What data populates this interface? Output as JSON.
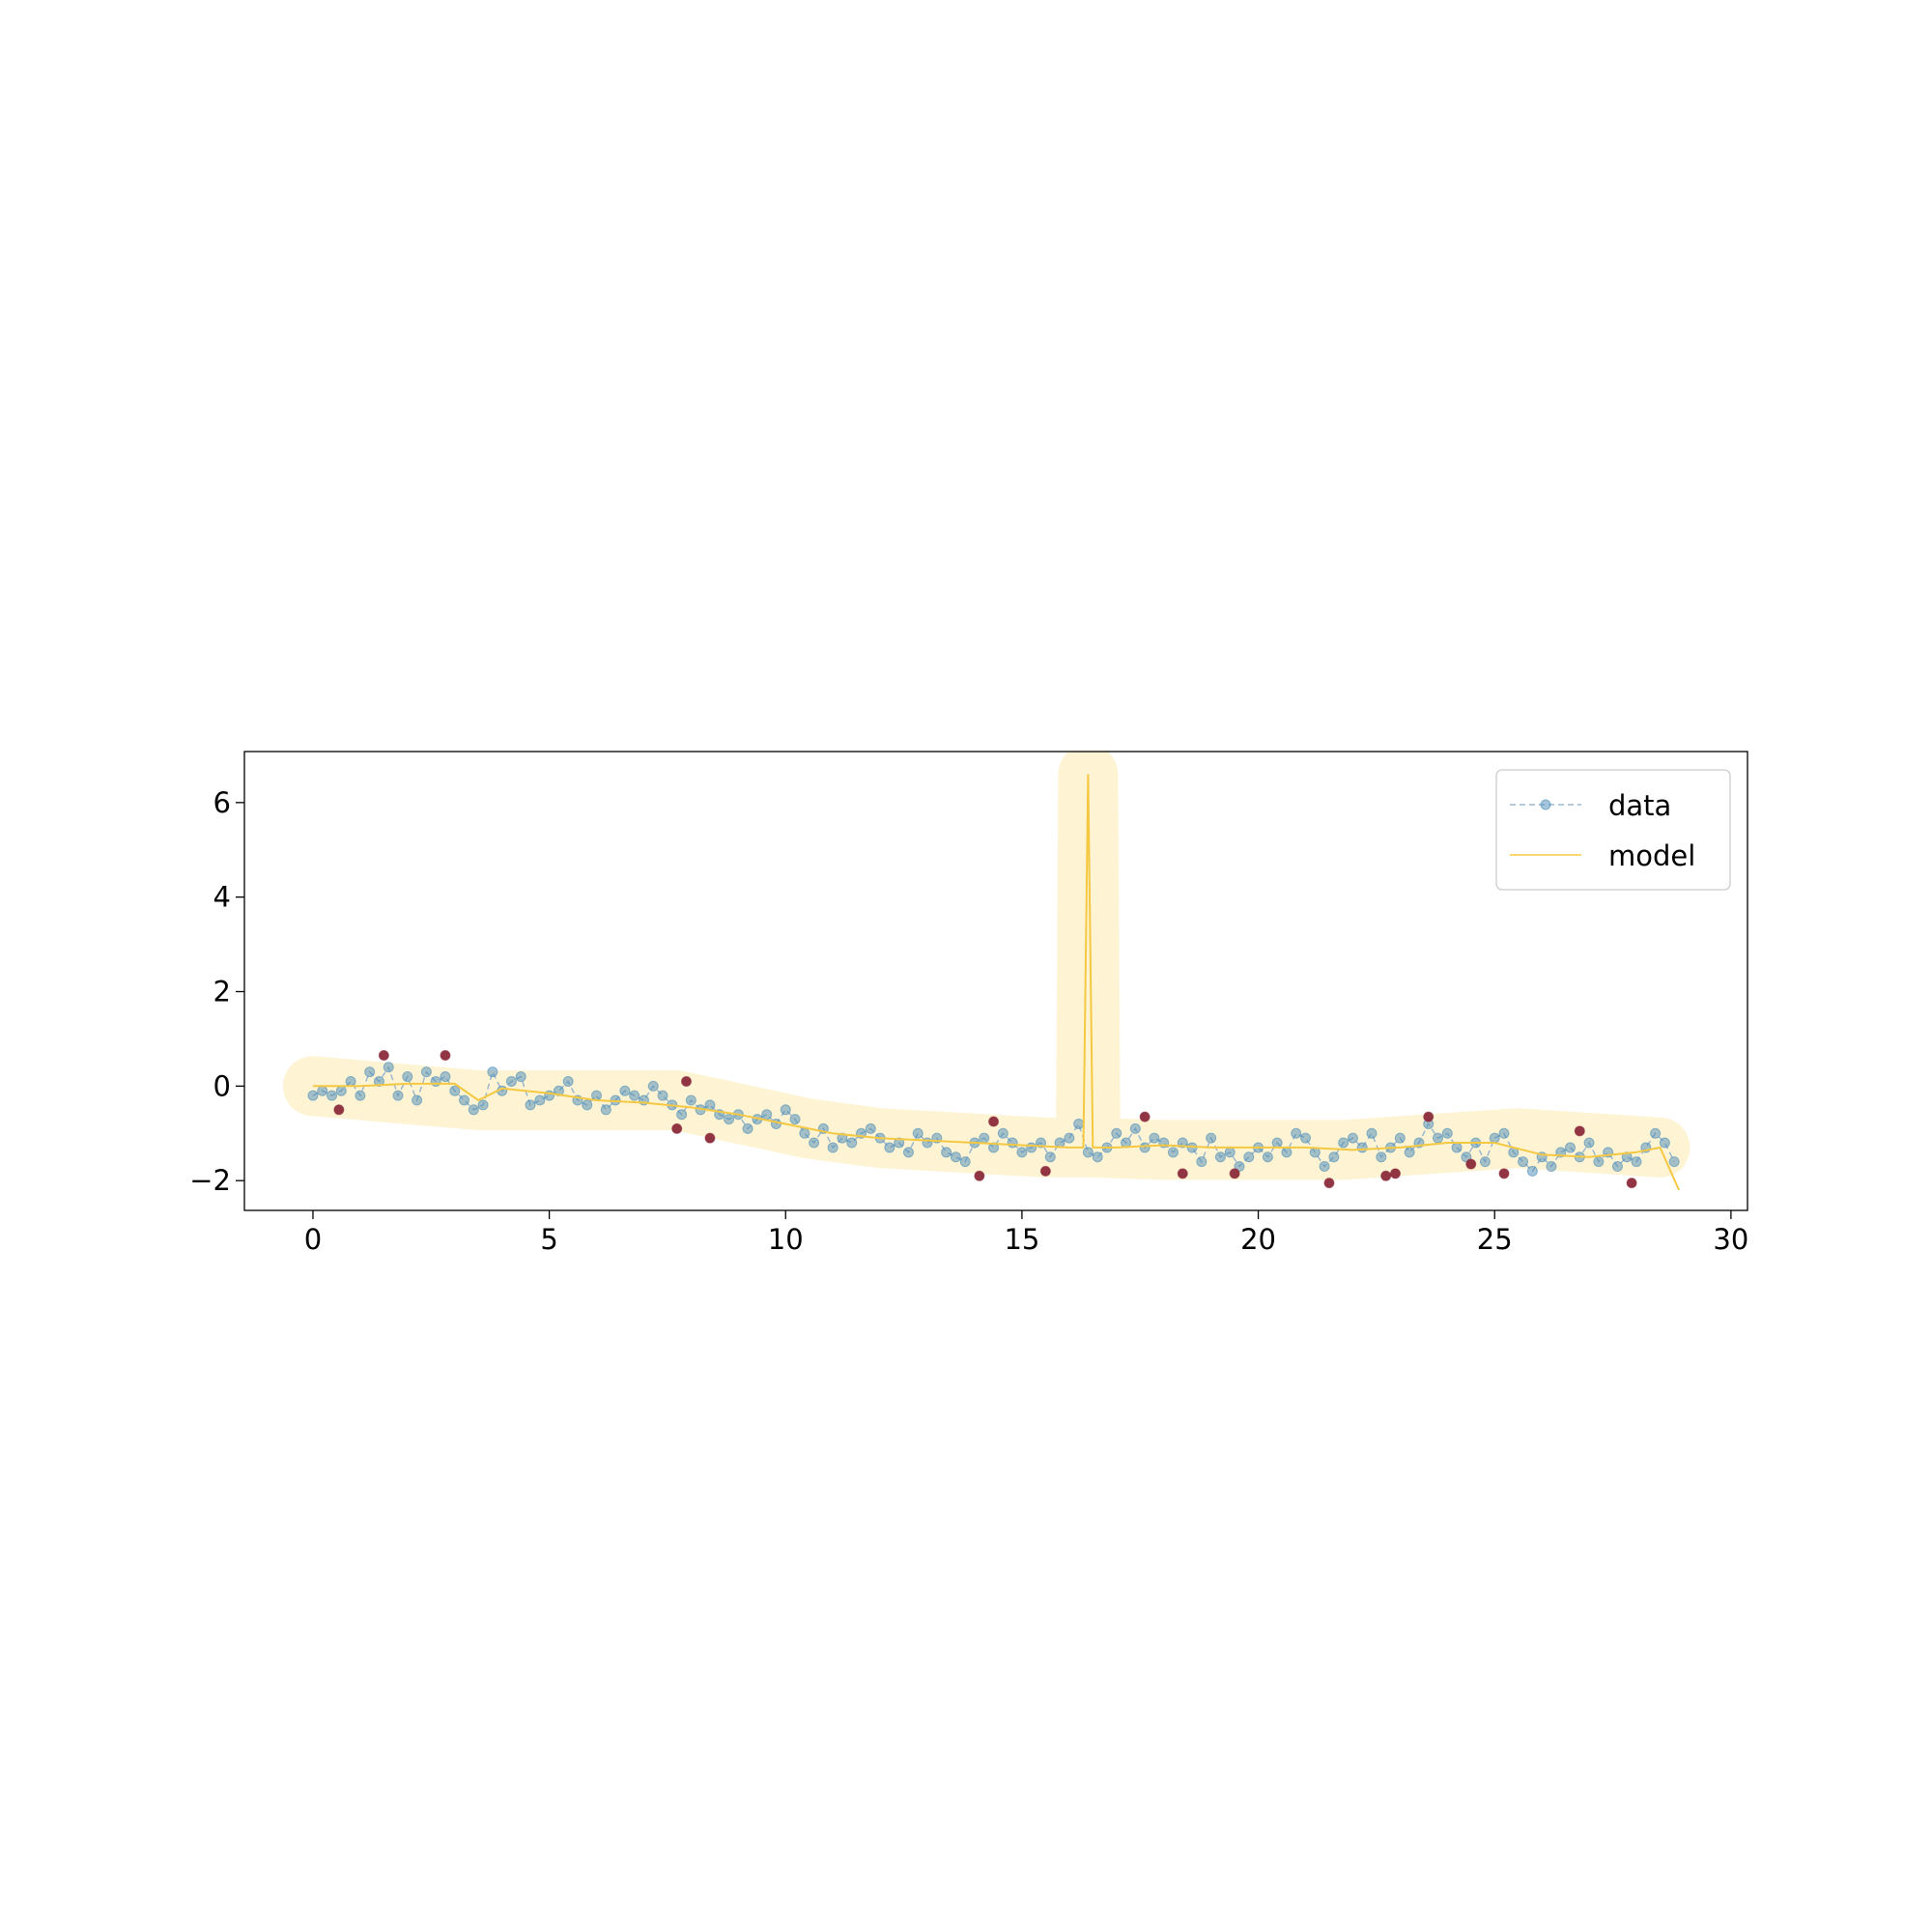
{
  "chart_data": {
    "type": "line",
    "xlim": [
      -1.45,
      30.35
    ],
    "ylim": [
      -2.63,
      7.08
    ],
    "xticks": [
      0,
      5,
      10,
      15,
      20,
      25,
      30
    ],
    "yticks": [
      {
        "value": -2,
        "label": "−2"
      },
      0,
      2,
      4,
      6
    ],
    "legend": "upper right",
    "series": [
      {
        "style": "band",
        "color": "#fde7a0",
        "x": [
          0,
          3.5,
          7.7,
          10.5,
          12,
          15.5,
          16.35,
          16.4,
          16.45,
          18,
          21.8,
          25.5,
          28.5
        ],
        "values": [
          0,
          -0.3,
          -0.3,
          -0.9,
          -1.1,
          -1.3,
          -1.3,
          6.6,
          -1.3,
          -1.35,
          -1.35,
          -1.1,
          -1.3
        ]
      },
      {
        "name": "data",
        "style": "dashed-markers",
        "color": "#4a8cb8",
        "x": [
          0,
          0.2,
          0.4,
          0.6,
          0.8,
          1,
          1.2,
          1.4,
          1.6,
          1.8,
          2,
          2.2,
          2.4,
          2.6,
          2.8,
          3,
          3.2,
          3.4,
          3.6,
          3.8,
          4,
          4.2,
          4.4,
          4.6,
          4.8,
          5,
          5.2,
          5.4,
          5.6,
          5.8,
          6,
          6.2,
          6.4,
          6.6,
          6.8,
          7,
          7.2,
          7.4,
          7.6,
          7.8,
          8,
          8.2,
          8.4,
          8.6,
          8.8,
          9,
          9.2,
          9.4,
          9.6,
          9.8,
          10,
          10.2,
          10.4,
          10.6,
          10.8,
          11,
          11.2,
          11.4,
          11.6,
          11.8,
          12,
          12.2,
          12.4,
          12.6,
          12.8,
          13,
          13.2,
          13.4,
          13.6,
          13.8,
          14,
          14.2,
          14.4,
          14.6,
          14.8,
          15,
          15.2,
          15.4,
          15.6,
          15.8,
          16,
          16.2,
          16.4,
          16.6,
          16.8,
          17,
          17.2,
          17.4,
          17.6,
          17.8,
          18,
          18.2,
          18.4,
          18.6,
          18.8,
          19,
          19.2,
          19.4,
          19.6,
          19.8,
          20,
          20.2,
          20.4,
          20.6,
          20.8,
          21,
          21.2,
          21.4,
          21.6,
          21.8,
          22,
          22.2,
          22.4,
          22.6,
          22.8,
          23,
          23.2,
          23.4,
          23.6,
          23.8,
          24,
          24.2,
          24.4,
          24.6,
          24.8,
          25,
          25.2,
          25.4,
          25.6,
          25.8,
          26,
          26.2,
          26.4,
          26.6,
          26.8,
          27,
          27.2,
          27.4,
          27.6,
          27.8,
          28,
          28.2,
          28.4,
          28.6,
          28.8
        ],
        "values": [
          -0.2,
          -0.1,
          -0.2,
          -0.1,
          0.1,
          -0.2,
          0.3,
          0.1,
          0.4,
          -0.2,
          0.2,
          -0.3,
          0.3,
          0.1,
          0.2,
          -0.1,
          -0.3,
          -0.5,
          -0.4,
          0.3,
          -0.1,
          0.1,
          0.2,
          -0.4,
          -0.3,
          -0.2,
          -0.1,
          0.1,
          -0.3,
          -0.4,
          -0.2,
          -0.5,
          -0.3,
          -0.1,
          -0.2,
          -0.3,
          0.0,
          -0.2,
          -0.4,
          -0.6,
          -0.3,
          -0.5,
          -0.4,
          -0.6,
          -0.7,
          -0.6,
          -0.9,
          -0.7,
          -0.6,
          -0.8,
          -0.5,
          -0.7,
          -1.0,
          -1.2,
          -0.9,
          -1.3,
          -1.1,
          -1.2,
          -1.0,
          -0.9,
          -1.1,
          -1.3,
          -1.2,
          -1.4,
          -1.0,
          -1.2,
          -1.1,
          -1.4,
          -1.5,
          -1.6,
          -1.2,
          -1.1,
          -1.3,
          -1.0,
          -1.2,
          -1.4,
          -1.3,
          -1.2,
          -1.5,
          -1.2,
          -1.1,
          -0.8,
          -1.4,
          -1.5,
          -1.3,
          -1.0,
          -1.2,
          -0.9,
          -1.3,
          -1.1,
          -1.2,
          -1.4,
          -1.2,
          -1.3,
          -1.6,
          -1.1,
          -1.5,
          -1.4,
          -1.7,
          -1.5,
          -1.3,
          -1.5,
          -1.2,
          -1.4,
          -1.0,
          -1.1,
          -1.4,
          -1.7,
          -1.5,
          -1.2,
          -1.1,
          -1.3,
          -1.0,
          -1.5,
          -1.3,
          -1.1,
          -1.4,
          -1.2,
          -0.8,
          -1.1,
          -1.0,
          -1.3,
          -1.5,
          -1.2,
          -1.6,
          -1.1,
          -1.0,
          -1.4,
          -1.6,
          -1.8,
          -1.5,
          -1.7,
          -1.4,
          -1.3,
          -1.5,
          -1.2,
          -1.6,
          -1.4,
          -1.7,
          -1.5,
          -1.6,
          -1.3,
          -1.0,
          -1.2,
          -1.6
        ]
      },
      {
        "name": "model",
        "style": "line",
        "color": "#f5c842",
        "x": [
          0,
          1,
          2,
          3,
          3.5,
          4,
          5,
          6,
          7,
          8,
          9,
          10,
          11,
          12,
          13,
          14,
          15,
          16,
          16.3,
          16.4,
          16.5,
          17,
          18,
          19,
          20,
          21,
          22,
          23,
          24,
          25,
          26,
          27,
          28,
          28.5,
          28.9
        ],
        "values": [
          0,
          0,
          0.05,
          0.05,
          -0.3,
          -0.05,
          -0.15,
          -0.3,
          -0.35,
          -0.45,
          -0.6,
          -0.8,
          -1.0,
          -1.1,
          -1.15,
          -1.2,
          -1.25,
          -1.3,
          -1.3,
          6.6,
          -1.3,
          -1.3,
          -1.25,
          -1.3,
          -1.3,
          -1.3,
          -1.35,
          -1.3,
          -1.2,
          -1.2,
          -1.45,
          -1.5,
          -1.4,
          -1.3,
          -2.2
        ]
      },
      {
        "style": "points",
        "color": "#8b2a3a",
        "x": [
          0.55,
          1.5,
          2.8,
          7.7,
          7.9,
          8.4,
          14.1,
          14.4,
          15.5,
          17.6,
          18.4,
          19.5,
          21.5,
          22.7,
          22.9,
          23.6,
          24.5,
          25.2,
          26.8,
          27.9
        ],
        "values": [
          -0.5,
          0.65,
          0.65,
          -0.9,
          0.1,
          -1.1,
          -1.9,
          -0.75,
          -1.8,
          -0.65,
          -1.85,
          -1.85,
          -2.05,
          -1.9,
          -1.85,
          -0.65,
          -1.65,
          -1.85,
          -0.95,
          -2.05
        ]
      }
    ]
  }
}
